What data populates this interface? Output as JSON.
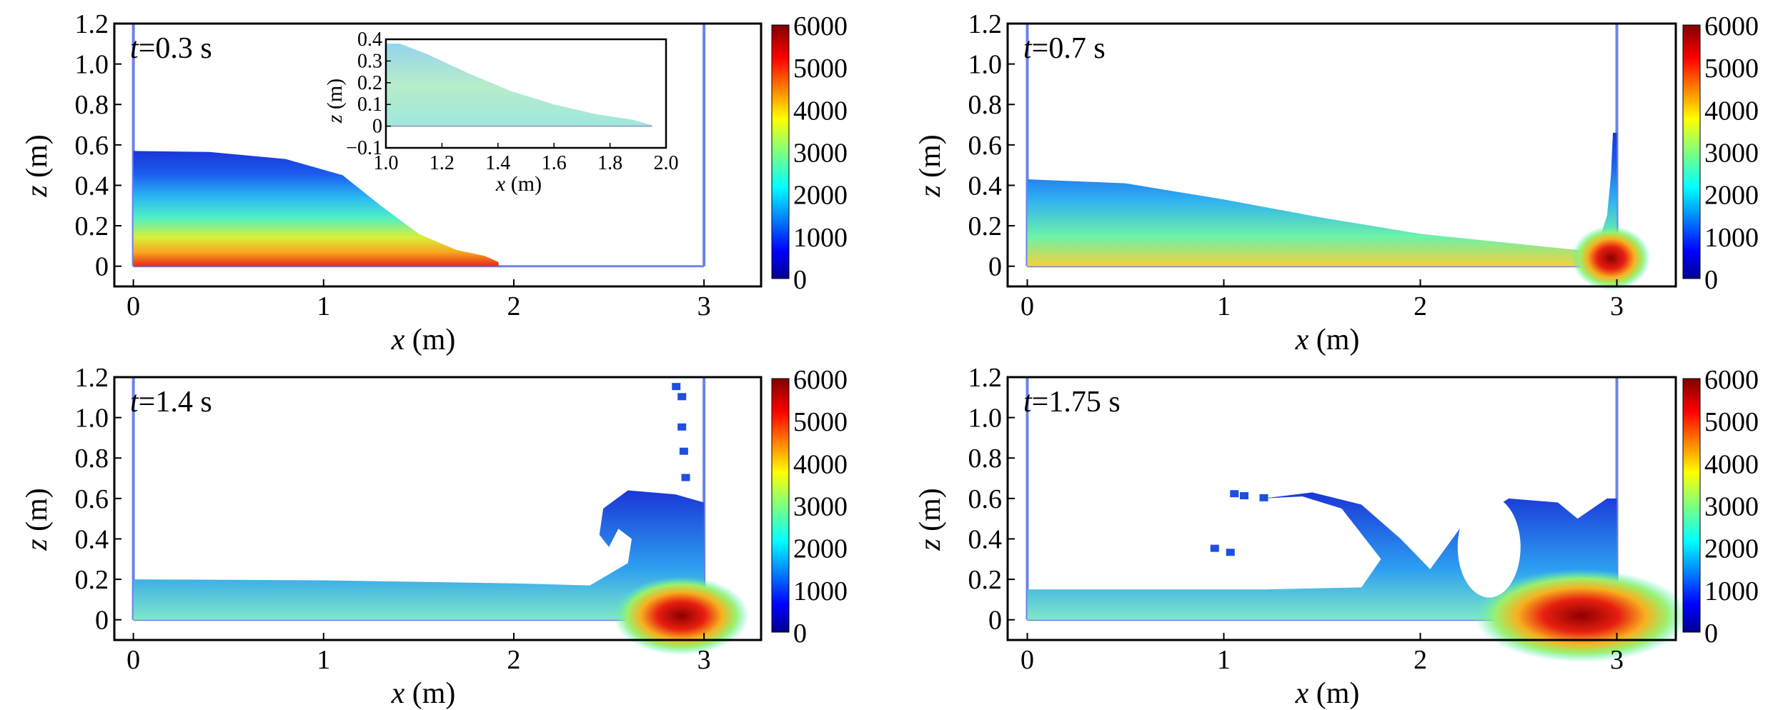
{
  "chart_data": [
    {
      "type": "heatmap",
      "time": "0.3",
      "xlabel_var": "x",
      "xlabel_unit": "(m)",
      "ylabel_var": "z",
      "ylabel_unit": "(m)",
      "xlim": [
        -0.1,
        3.3
      ],
      "ylim": [
        -0.1,
        1.2
      ],
      "xticks": [
        0,
        1,
        2,
        3
      ],
      "yticks": [
        0,
        0.2,
        0.4,
        0.6,
        0.8,
        1.0,
        1.2
      ],
      "ytick_labels": [
        "0",
        "0.2",
        "0.4",
        "0.6",
        "0.8",
        "1.0",
        "1.2"
      ],
      "colorbar": {
        "min": 0,
        "max": 6000,
        "ticks": [
          0,
          1000,
          2000,
          3000,
          4000,
          5000,
          6000
        ]
      },
      "walls_x": [
        0,
        3
      ],
      "surface": [
        [
          0,
          0.57
        ],
        [
          0.4,
          0.565
        ],
        [
          0.8,
          0.53
        ],
        [
          1.1,
          0.45
        ],
        [
          1.3,
          0.3
        ],
        [
          1.5,
          0.16
        ],
        [
          1.7,
          0.08
        ],
        [
          1.85,
          0.05
        ],
        [
          1.92,
          0.02
        ],
        [
          1.92,
          0
        ]
      ],
      "inset": {
        "xlim": [
          1.0,
          2.0
        ],
        "ylim": [
          -0.1,
          0.4
        ],
        "xticks": [
          1.0,
          1.2,
          1.4,
          1.6,
          1.8,
          2.0
        ],
        "xtick_labels": [
          "1.0",
          "1.2",
          "1.4",
          "1.6",
          "1.8",
          "2.0"
        ],
        "yticks": [
          -0.1,
          0,
          0.1,
          0.2,
          0.3,
          0.4
        ],
        "ytick_labels": [
          "−0.1",
          "0",
          "0.1",
          "0.2",
          "0.3",
          "0.4"
        ],
        "xlabel_var": "x",
        "xlabel_unit": "(m)",
        "ylabel_var": "z",
        "ylabel_unit": "(m)",
        "surface": [
          [
            1.05,
            0.38
          ],
          [
            1.15,
            0.33
          ],
          [
            1.3,
            0.24
          ],
          [
            1.45,
            0.16
          ],
          [
            1.6,
            0.1
          ],
          [
            1.75,
            0.055
          ],
          [
            1.88,
            0.03
          ],
          [
            1.95,
            0.005
          ],
          [
            1.95,
            0
          ]
        ]
      }
    },
    {
      "type": "heatmap",
      "time": "0.7",
      "xlabel_var": "x",
      "xlabel_unit": "(m)",
      "ylabel_var": "z",
      "ylabel_unit": "(m)",
      "xlim": [
        -0.1,
        3.3
      ],
      "ylim": [
        -0.1,
        1.2
      ],
      "xticks": [
        0,
        1,
        2,
        3
      ],
      "yticks": [
        0,
        0.2,
        0.4,
        0.6,
        0.8,
        1.0,
        1.2
      ],
      "ytick_labels": [
        "0",
        "0.2",
        "0.4",
        "0.6",
        "0.8",
        "1.0",
        "1.2"
      ],
      "colorbar": {
        "min": 0,
        "max": 6000,
        "ticks": [
          0,
          1000,
          2000,
          3000,
          4000,
          5000,
          6000
        ]
      },
      "walls_x": [
        0,
        3
      ],
      "surface": [
        [
          0,
          0.43
        ],
        [
          0.5,
          0.41
        ],
        [
          1.0,
          0.33
        ],
        [
          1.5,
          0.24
        ],
        [
          2.0,
          0.16
        ],
        [
          2.5,
          0.11
        ],
        [
          2.8,
          0.08
        ],
        [
          2.9,
          0.1
        ],
        [
          2.95,
          0.25
        ],
        [
          2.97,
          0.45
        ],
        [
          2.98,
          0.66
        ],
        [
          3.0,
          0.66
        ],
        [
          3.0,
          0
        ]
      ]
    },
    {
      "type": "heatmap",
      "time": "1.4",
      "xlabel_var": "x",
      "xlabel_unit": "(m)",
      "ylabel_var": "z",
      "ylabel_unit": "(m)",
      "xlim": [
        -0.1,
        3.3
      ],
      "ylim": [
        -0.1,
        1.2
      ],
      "xticks": [
        0,
        1,
        2,
        3
      ],
      "yticks": [
        0,
        0.2,
        0.4,
        0.6,
        0.8,
        1.0,
        1.2
      ],
      "ytick_labels": [
        "0",
        "0.2",
        "0.4",
        "0.6",
        "0.8",
        "1.0",
        "1.2"
      ],
      "colorbar": {
        "min": 0,
        "max": 6000,
        "ticks": [
          0,
          1000,
          2000,
          3000,
          4000,
          5000,
          6000
        ]
      },
      "walls_x": [
        0,
        3
      ],
      "surface": [
        [
          0,
          0.2
        ],
        [
          1.0,
          0.195
        ],
        [
          2.0,
          0.18
        ],
        [
          2.4,
          0.17
        ],
        [
          2.6,
          0.28
        ],
        [
          2.62,
          0.4
        ],
        [
          2.55,
          0.45
        ],
        [
          2.5,
          0.36
        ],
        [
          2.45,
          0.42
        ],
        [
          2.47,
          0.55
        ],
        [
          2.6,
          0.64
        ],
        [
          2.85,
          0.62
        ],
        [
          3.0,
          0.58
        ],
        [
          3.0,
          0
        ]
      ],
      "spray": [
        [
          2.85,
          1.15
        ],
        [
          2.88,
          1.1
        ],
        [
          2.88,
          0.95
        ],
        [
          2.89,
          0.83
        ],
        [
          2.9,
          0.7
        ]
      ]
    },
    {
      "type": "heatmap",
      "time": "1.75",
      "xlabel_var": "x",
      "xlabel_unit": "(m)",
      "ylabel_var": "z",
      "ylabel_unit": "(m)",
      "xlim": [
        -0.1,
        3.3
      ],
      "ylim": [
        -0.1,
        1.2
      ],
      "xticks": [
        0,
        1,
        2,
        3
      ],
      "yticks": [
        0,
        0.2,
        0.4,
        0.6,
        0.8,
        1.0,
        1.2
      ],
      "ytick_labels": [
        "0",
        "0.2",
        "0.4",
        "0.6",
        "0.8",
        "1.0",
        "1.2"
      ],
      "colorbar": {
        "min": 0,
        "max": 6000,
        "ticks": [
          0,
          1000,
          2000,
          3000,
          4000,
          5000,
          6000
        ]
      },
      "walls_x": [
        0,
        3
      ],
      "surface": [
        [
          0,
          0.15
        ],
        [
          1.2,
          0.15
        ],
        [
          1.7,
          0.16
        ],
        [
          1.8,
          0.3
        ],
        [
          1.6,
          0.55
        ],
        [
          1.4,
          0.61
        ],
        [
          1.2,
          0.6
        ],
        [
          1.45,
          0.63
        ],
        [
          1.7,
          0.57
        ],
        [
          1.9,
          0.4
        ],
        [
          2.05,
          0.25
        ],
        [
          2.2,
          0.45
        ],
        [
          2.45,
          0.6
        ],
        [
          2.7,
          0.58
        ],
        [
          2.8,
          0.5
        ],
        [
          2.95,
          0.6
        ],
        [
          3.0,
          0.6
        ],
        [
          3.0,
          0
        ]
      ],
      "cavity": [
        [
          2.35,
          0.36
        ],
        [
          0.16,
          0.25
        ]
      ],
      "spray": [
        [
          1.05,
          0.62
        ],
        [
          1.1,
          0.61
        ],
        [
          1.2,
          0.6
        ],
        [
          0.95,
          0.35
        ],
        [
          1.03,
          0.33
        ]
      ]
    }
  ]
}
